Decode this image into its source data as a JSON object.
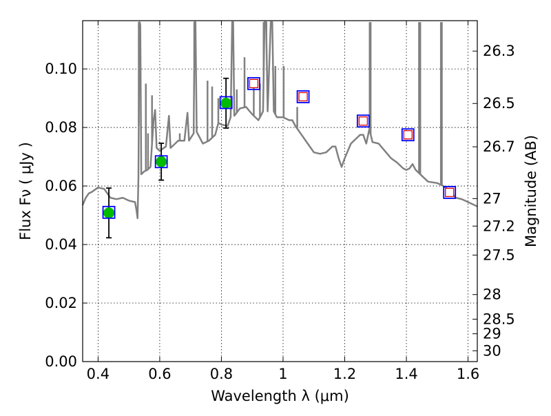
{
  "chart_data": {
    "type": "scatter",
    "title": "",
    "xlabel": "Wavelength  λ (μm)",
    "ylabel": "Flux  Fν  ( μJy )",
    "y2label": "Magnitude (AB)",
    "xlim": [
      0.35,
      1.63
    ],
    "ylim": [
      0.0,
      0.1165
    ],
    "grid": true,
    "legend": "none",
    "xticks": [
      0.4,
      0.6,
      0.8,
      1.0,
      1.2,
      1.4,
      1.6
    ],
    "xtick_labels": [
      "0.4",
      "0.6",
      "0.8",
      "1",
      "1.2",
      "1.4",
      "1.6"
    ],
    "yticks": [
      0.0,
      0.02,
      0.04,
      0.06,
      0.08,
      0.1
    ],
    "ytick_labels": [
      "0.00",
      "0.02",
      "0.04",
      "0.06",
      "0.08",
      "0.10"
    ],
    "y2ticks": [
      {
        "label": "26.3",
        "flux": 0.1061
      },
      {
        "label": "26.5",
        "flux": 0.0882
      },
      {
        "label": "26.7",
        "flux": 0.0734
      },
      {
        "label": "27",
        "flux": 0.0557
      },
      {
        "label": "27.2",
        "flux": 0.0463
      },
      {
        "label": "27.5",
        "flux": 0.0364
      },
      {
        "label": "28",
        "flux": 0.0229
      },
      {
        "label": "28.5",
        "flux": 0.0145
      },
      {
        "label": "29",
        "flux": 0.0095
      },
      {
        "label": "30",
        "flux": 0.0037
      }
    ],
    "colors": {
      "model": "#808080",
      "observed": "#00bb00",
      "model_box": "#0000ff",
      "upper": "#dd0000",
      "errorbar": "#000000"
    },
    "series": [
      {
        "kind": "model_spectrum",
        "points": [
          [
            0.35,
            0.0535
          ],
          [
            0.36,
            0.056
          ],
          [
            0.37,
            0.0575
          ],
          [
            0.38,
            0.058
          ],
          [
            0.4,
            0.0595
          ],
          [
            0.42,
            0.059
          ],
          [
            0.44,
            0.056
          ],
          [
            0.46,
            0.0555
          ],
          [
            0.48,
            0.056
          ],
          [
            0.5,
            0.055
          ],
          [
            0.52,
            0.0545
          ],
          [
            0.525,
            0.0515
          ],
          [
            0.528,
            0.049
          ],
          [
            0.531,
            0.063
          ],
          [
            0.534,
            0.116
          ],
          [
            0.537,
            0.115
          ],
          [
            0.54,
            0.064
          ],
          [
            0.55,
            0.065
          ],
          [
            0.56,
            0.0655
          ],
          [
            0.57,
            0.0665
          ],
          [
            0.58,
            0.0825
          ],
          [
            0.585,
            0.086
          ],
          [
            0.59,
            0.073
          ],
          [
            0.6,
            0.072
          ],
          [
            0.62,
            0.0735
          ],
          [
            0.63,
            0.084
          ],
          [
            0.635,
            0.073
          ],
          [
            0.65,
            0.0745
          ],
          [
            0.66,
            0.0755
          ],
          [
            0.68,
            0.0755
          ],
          [
            0.69,
            0.085
          ],
          [
            0.695,
            0.0755
          ],
          [
            0.71,
            0.078
          ],
          [
            0.713,
            0.116
          ],
          [
            0.716,
            0.116
          ],
          [
            0.72,
            0.0785
          ],
          [
            0.74,
            0.0745
          ],
          [
            0.76,
            0.0755
          ],
          [
            0.78,
            0.0775
          ],
          [
            0.79,
            0.0815
          ],
          [
            0.8,
            0.081
          ],
          [
            0.82,
            0.0805
          ],
          [
            0.83,
            0.0835
          ],
          [
            0.835,
            0.116
          ],
          [
            0.838,
            0.116
          ],
          [
            0.842,
            0.084
          ],
          [
            0.86,
            0.0865
          ],
          [
            0.88,
            0.087
          ],
          [
            0.9,
            0.0845
          ],
          [
            0.92,
            0.0825
          ],
          [
            0.935,
            0.0855
          ],
          [
            0.94,
            0.116
          ],
          [
            0.945,
            0.116
          ],
          [
            0.95,
            0.0855
          ],
          [
            0.96,
            0.116
          ],
          [
            0.965,
            0.116
          ],
          [
            0.97,
            0.0855
          ],
          [
            0.98,
            0.0835
          ],
          [
            1.0,
            0.0835
          ],
          [
            1.02,
            0.0825
          ],
          [
            1.03,
            0.0825
          ],
          [
            1.04,
            0.0805
          ],
          [
            1.06,
            0.0775
          ],
          [
            1.08,
            0.0745
          ],
          [
            1.1,
            0.0715
          ],
          [
            1.12,
            0.071
          ],
          [
            1.14,
            0.0715
          ],
          [
            1.16,
            0.0735
          ],
          [
            1.17,
            0.0735
          ],
          [
            1.18,
            0.0695
          ],
          [
            1.19,
            0.0665
          ],
          [
            1.2,
            0.0695
          ],
          [
            1.22,
            0.0745
          ],
          [
            1.24,
            0.0765
          ],
          [
            1.25,
            0.0775
          ],
          [
            1.26,
            0.0775
          ],
          [
            1.27,
            0.0745
          ],
          [
            1.28,
            0.0795
          ],
          [
            1.29,
            0.075
          ],
          [
            1.31,
            0.0745
          ],
          [
            1.33,
            0.072
          ],
          [
            1.35,
            0.0695
          ],
          [
            1.37,
            0.068
          ],
          [
            1.39,
            0.066
          ],
          [
            1.4,
            0.0655
          ],
          [
            1.41,
            0.066
          ],
          [
            1.42,
            0.0675
          ],
          [
            1.43,
            0.0655
          ],
          [
            1.45,
            0.0635
          ],
          [
            1.47,
            0.0615
          ],
          [
            1.5,
            0.061
          ],
          [
            1.52,
            0.06
          ],
          [
            1.54,
            0.0585
          ],
          [
            1.56,
            0.056
          ],
          [
            1.58,
            0.0555
          ],
          [
            1.6,
            0.0545
          ],
          [
            1.63,
            0.053
          ]
        ],
        "spikes": [
          [
            0.532,
            0.116
          ],
          [
            0.536,
            0.116
          ],
          [
            0.555,
            0.095
          ],
          [
            0.562,
            0.078
          ],
          [
            0.575,
            0.091
          ],
          [
            0.582,
            0.083
          ],
          [
            0.63,
            0.084
          ],
          [
            0.665,
            0.078
          ],
          [
            0.69,
            0.085
          ],
          [
            0.712,
            0.116
          ],
          [
            0.715,
            0.116
          ],
          [
            0.755,
            0.096
          ],
          [
            0.77,
            0.094
          ],
          [
            0.79,
            0.09
          ],
          [
            0.836,
            0.116
          ],
          [
            0.85,
            0.093
          ],
          [
            0.875,
            0.104
          ],
          [
            0.905,
            0.094
          ],
          [
            0.925,
            0.095
          ],
          [
            0.937,
            0.116
          ],
          [
            0.946,
            0.116
          ],
          [
            0.962,
            0.116
          ],
          [
            0.975,
            0.101
          ],
          [
            1.002,
            0.101
          ],
          [
            1.046,
            0.087
          ],
          [
            1.281,
            0.116
          ],
          [
            1.284,
            0.116
          ],
          [
            1.441,
            0.116
          ],
          [
            1.445,
            0.116
          ],
          [
            1.512,
            0.116
          ],
          [
            1.515,
            0.116
          ]
        ]
      },
      {
        "kind": "observed",
        "x": [
          0.435,
          0.605,
          0.815
        ],
        "y": [
          0.0508,
          0.0683,
          0.0883
        ],
        "yerr": [
          0.0085,
          0.0063,
          0.0085
        ]
      },
      {
        "kind": "model_photometry",
        "x": [
          0.435,
          0.605,
          0.815,
          0.905,
          1.065,
          1.26,
          1.405,
          1.54
        ],
        "y": [
          0.051,
          0.0683,
          0.0885,
          0.095,
          0.0905,
          0.0822,
          0.0775,
          0.0578
        ]
      },
      {
        "kind": "upper_limit",
        "x": [
          0.905,
          1.065,
          1.26,
          1.405,
          1.54
        ],
        "y": [
          0.095,
          0.0905,
          0.0822,
          0.0775,
          0.0578
        ]
      }
    ]
  }
}
